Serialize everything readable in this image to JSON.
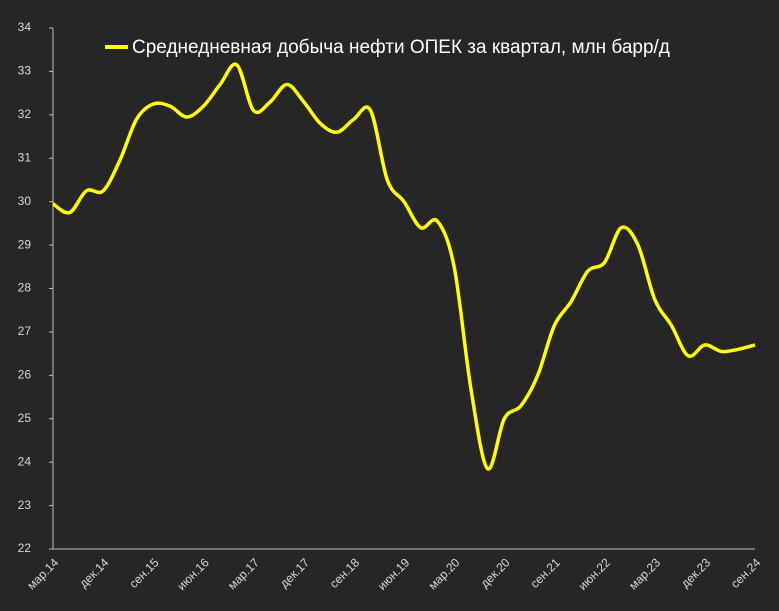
{
  "chart_data": {
    "type": "line",
    "categories": [
      "мар.14",
      null,
      null,
      "дек.14",
      null,
      null,
      "сен.15",
      null,
      null,
      "июн.16",
      null,
      null,
      "мар.17",
      null,
      null,
      "дек.17",
      null,
      null,
      "сен.18",
      null,
      null,
      "июн.19",
      null,
      null,
      "мар.20",
      null,
      null,
      "дек.20",
      null,
      null,
      "сен.21",
      null,
      null,
      "июн.22",
      null,
      null,
      "мар.23",
      null,
      null,
      "дек.23",
      null,
      null,
      "сен.24"
    ],
    "series": [
      {
        "name": "Среднедневная добыча нефти ОПЕК за квартал, млн барр/д",
        "color": "#ffff00",
        "values": [
          29.95,
          29.75,
          30.25,
          30.25,
          30.95,
          31.9,
          32.25,
          32.2,
          31.95,
          32.2,
          32.7,
          33.15,
          32.1,
          32.3,
          32.7,
          32.3,
          31.8,
          31.6,
          31.9,
          32.1,
          30.5,
          30.0,
          29.4,
          29.55,
          28.5,
          25.7,
          23.85,
          25.0,
          25.3,
          26.0,
          27.15,
          27.7,
          28.4,
          28.6,
          29.4,
          29.0,
          27.75,
          27.15,
          26.45,
          26.7,
          26.55,
          26.6,
          26.7
        ]
      }
    ],
    "ylim": [
      22,
      34
    ],
    "yticks": [
      22,
      23,
      24,
      25,
      26,
      27,
      28,
      29,
      30,
      31,
      32,
      33,
      34
    ],
    "grid": false,
    "legend": "top"
  }
}
